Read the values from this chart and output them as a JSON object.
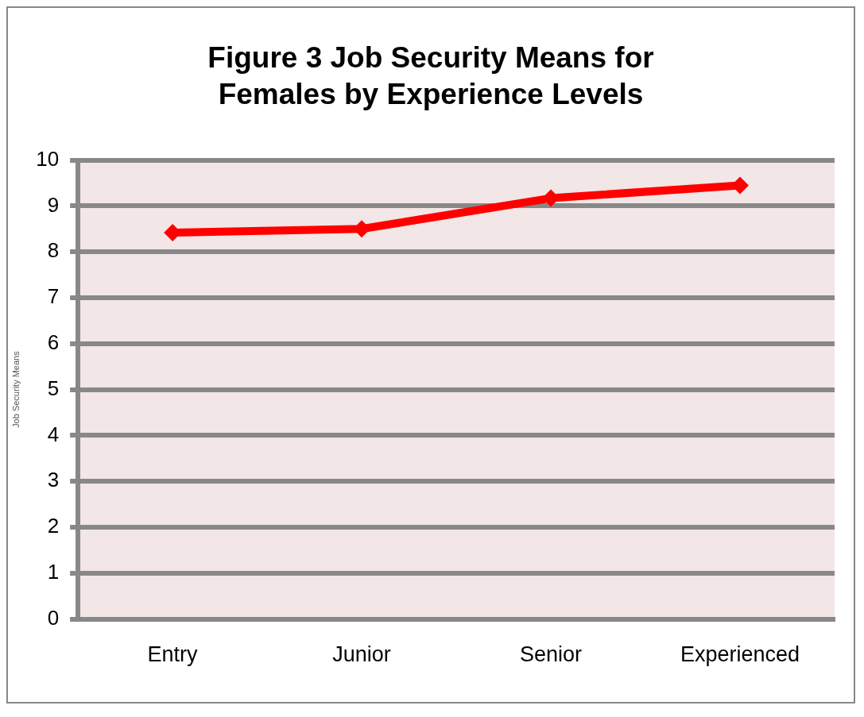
{
  "chart_data": {
    "type": "line",
    "title": "Figure 3 Job Security Means for Females by Experience Levels",
    "ylabel": "Job Security Means",
    "categories": [
      "Entry",
      "Junior",
      "Senior",
      "Experienced"
    ],
    "series": [
      {
        "color": "#ff0000",
        "values": [
          8.42,
          8.5,
          9.17,
          9.45
        ]
      }
    ],
    "ylim": [
      0,
      10
    ],
    "yticks": [
      0,
      1,
      2,
      3,
      4,
      5,
      6,
      7,
      8,
      9,
      10
    ],
    "grid": "y",
    "marker": "diamond",
    "line_style": "solid",
    "legend": false
  }
}
